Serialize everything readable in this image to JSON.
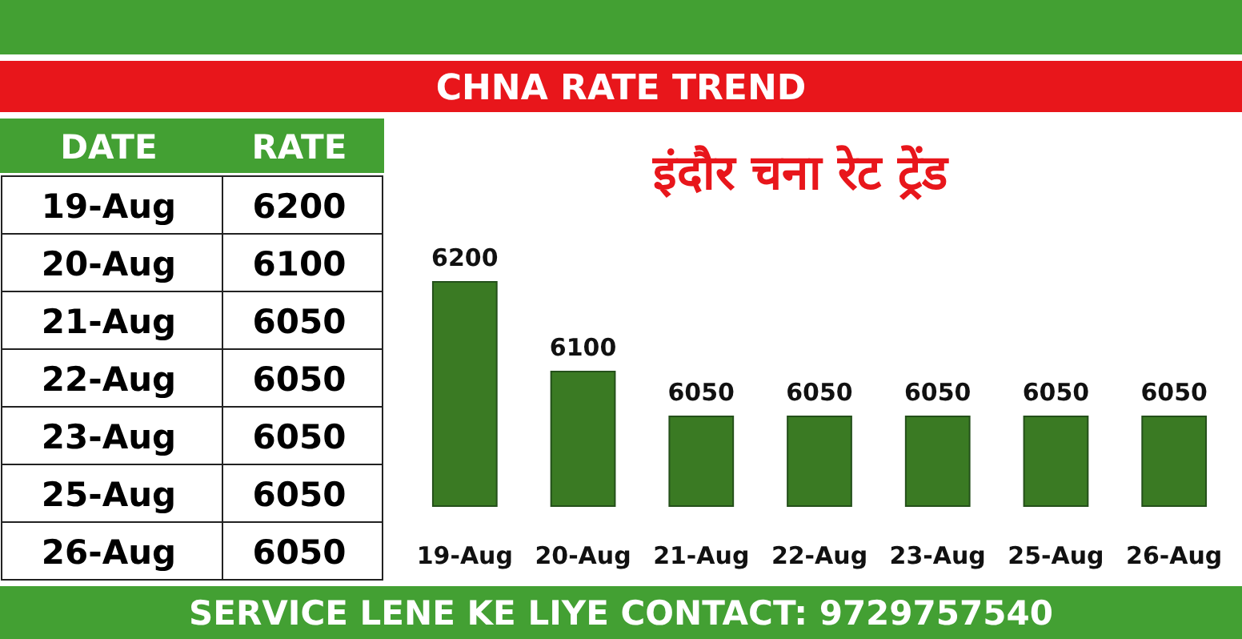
{
  "chart_data": [
    {
      "type": "other",
      "title": "CHNA RATE TREND",
      "xlabel": "DATE",
      "ylabel": "RATE",
      "categories": [
        "19-Aug",
        "20-Aug",
        "21-Aug",
        "22-Aug",
        "23-Aug",
        "25-Aug",
        "26-Aug"
      ],
      "values": [
        6200,
        6100,
        6050,
        6050,
        6050,
        6050,
        6050
      ],
      "data_labels": true
    },
    {
      "type": "bar",
      "subtitle": "इंदौर चना रेट ट्रेंड",
      "categories": [
        "19-Aug",
        "20-Aug",
        "21-Aug",
        "22-Aug",
        "23-Aug",
        "25-Aug",
        "26-Aug"
      ],
      "values": [
        6200,
        6100,
        6050,
        6050,
        6050,
        6050,
        6050
      ],
      "color": "#3a7a23",
      "ylim": [
        5950,
        6200
      ],
      "data_labels": true,
      "tick_labels": "x",
      "annotations": [
        "SERVICE LENE KE LIYE CONTACT: 9729757540"
      ]
    }
  ]
}
